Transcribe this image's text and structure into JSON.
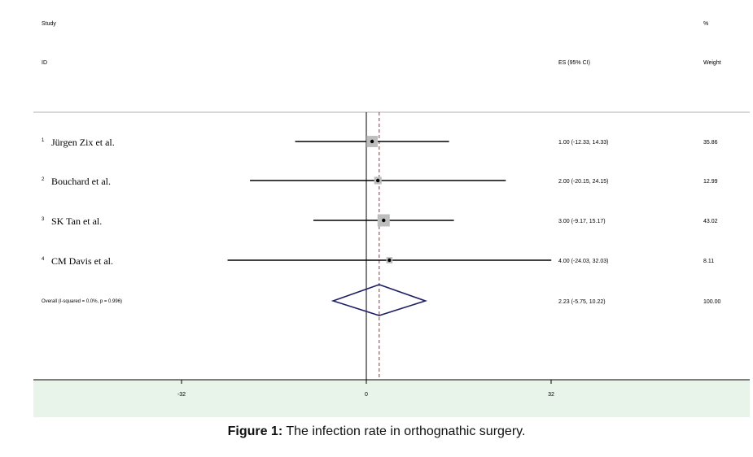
{
  "caption": {
    "label": "Figure 1:",
    "text": " The infection rate in orthognathic surgery."
  },
  "chart_data": {
    "type": "forest",
    "header": {
      "study": "Study",
      "id": "ID",
      "es_ci": "ES (95% CI)",
      "pct": "%",
      "weight": "Weight"
    },
    "studies": [
      {
        "num": "1",
        "name": "Jürgen Zix et al.",
        "es": 1.0,
        "lo": -12.33,
        "hi": 14.33,
        "es_text": "1.00 (-12.33, 14.33)",
        "weight": 35.86,
        "weight_text": "35.86"
      },
      {
        "num": "2",
        "name": "Bouchard et al.",
        "es": 2.0,
        "lo": -20.15,
        "hi": 24.15,
        "es_text": "2.00 (-20.15, 24.15)",
        "weight": 12.99,
        "weight_text": "12.99"
      },
      {
        "num": "3",
        "name": "SK Tan et al.",
        "es": 3.0,
        "lo": -9.17,
        "hi": 15.17,
        "es_text": "3.00 (-9.17, 15.17)",
        "weight": 43.02,
        "weight_text": "43.02"
      },
      {
        "num": "4",
        "name": "CM Davis et al.",
        "es": 4.0,
        "lo": -24.03,
        "hi": 32.03,
        "es_text": "4.00 (-24.03, 32.03)",
        "weight": 8.11,
        "weight_text": "8.11"
      }
    ],
    "overall": {
      "label": "Overall  (I-squared = 0.0%, p = 0.996)",
      "es": 2.23,
      "lo": -5.75,
      "hi": 10.22,
      "es_text": "2.23 (-5.75, 10.22)",
      "weight_text": "100.00"
    },
    "x_ticks": [
      -32,
      0,
      32
    ],
    "x_tick_labels": [
      "-32",
      "0",
      "32"
    ],
    "null_line": 0,
    "colors": {
      "axis_band": "#e8f3ea",
      "box": "#bdbdbd",
      "diamond": "#1f1f66",
      "overall_line": "#a0303a"
    }
  }
}
